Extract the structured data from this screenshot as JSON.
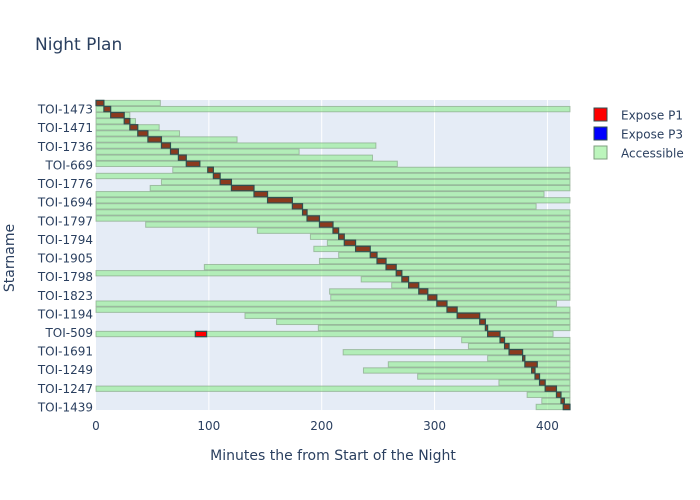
{
  "chart_data": {
    "type": "timeline",
    "title": "Night Plan",
    "xlabel": "Minutes the from Start of the Night",
    "ylabel": "Starname",
    "xlim": [
      0,
      420
    ],
    "x_ticks": [
      0,
      100,
      200,
      300,
      400
    ],
    "y_tick_labels": [
      "TOI-1473",
      "TOI-1471",
      "TOI-1736",
      "TOI-669",
      "TOI-1776",
      "TOI-1694",
      "TOI-1797",
      "TOI-1794",
      "TOI-1905",
      "TOI-1798",
      "TOI-1823",
      "TOI-1194",
      "TOI-509",
      "TOI-1691",
      "TOI-1249",
      "TOI-1247",
      "TOI-1439"
    ],
    "legend": [
      {
        "name": "Expose P1",
        "color": "#ff0000"
      },
      {
        "name": "Expose P3",
        "color": "#0000ff"
      },
      {
        "name": "Accessible",
        "color": "#90ee90"
      }
    ],
    "legend_position": "top-right",
    "rows": [
      {
        "acc": [
          [
            0,
            57
          ]
        ],
        "exp": [
          [
            0,
            7
          ]
        ]
      },
      {
        "acc": [
          [
            0,
            420
          ]
        ],
        "exp": [
          [
            7,
            13
          ]
        ]
      },
      {
        "acc": [
          [
            0,
            30
          ]
        ],
        "exp": [
          [
            13,
            25
          ]
        ]
      },
      {
        "acc": [
          [
            0,
            35
          ]
        ],
        "exp": [
          [
            25,
            30
          ]
        ]
      },
      {
        "acc": [
          [
            0,
            56
          ]
        ],
        "exp": [
          [
            30,
            37
          ]
        ]
      },
      {
        "acc": [
          [
            0,
            74
          ]
        ],
        "exp": [
          [
            37,
            46
          ]
        ]
      },
      {
        "acc": [
          [
            0,
            125
          ]
        ],
        "exp": [
          [
            46,
            58
          ]
        ]
      },
      {
        "acc": [
          [
            0,
            248
          ]
        ],
        "exp": [
          [
            58,
            66
          ]
        ]
      },
      {
        "acc": [
          [
            0,
            180
          ]
        ],
        "exp": [
          [
            66,
            73
          ]
        ]
      },
      {
        "acc": [
          [
            0,
            245
          ]
        ],
        "exp": [
          [
            73,
            80
          ]
        ]
      },
      {
        "acc": [
          [
            0,
            267
          ]
        ],
        "exp": [
          [
            80,
            92
          ]
        ]
      },
      {
        "acc": [
          [
            68,
            420
          ]
        ],
        "exp": [
          [
            99,
            104
          ]
        ]
      },
      {
        "acc": [
          [
            0,
            420
          ]
        ],
        "exp": [
          [
            104,
            110
          ]
        ]
      },
      {
        "acc": [
          [
            58,
            420
          ]
        ],
        "exp": [
          [
            110,
            120
          ]
        ]
      },
      {
        "acc": [
          [
            48,
            420
          ]
        ],
        "exp": [
          [
            120,
            140
          ]
        ]
      },
      {
        "acc": [
          [
            0,
            397
          ]
        ],
        "exp": [
          [
            140,
            152
          ]
        ]
      },
      {
        "acc": [
          [
            0,
            420
          ]
        ],
        "exp": [
          [
            152,
            174
          ]
        ]
      },
      {
        "acc": [
          [
            0,
            390
          ]
        ],
        "exp": [
          [
            174,
            183
          ]
        ]
      },
      {
        "acc": [
          [
            0,
            420
          ]
        ],
        "exp": [
          [
            183,
            187
          ]
        ]
      },
      {
        "acc": [
          [
            0,
            420
          ]
        ],
        "exp": [
          [
            187,
            198
          ]
        ]
      },
      {
        "acc": [
          [
            44,
            420
          ]
        ],
        "exp": [
          [
            198,
            210
          ]
        ]
      },
      {
        "acc": [
          [
            143,
            420
          ]
        ],
        "exp": [
          [
            210,
            215
          ]
        ]
      },
      {
        "acc": [
          [
            190,
            420
          ]
        ],
        "exp": [
          [
            215,
            220
          ]
        ]
      },
      {
        "acc": [
          [
            205,
            420
          ]
        ],
        "exp": [
          [
            220,
            230
          ]
        ]
      },
      {
        "acc": [
          [
            193,
            420
          ]
        ],
        "exp": [
          [
            230,
            243
          ]
        ]
      },
      {
        "acc": [
          [
            215,
            420
          ]
        ],
        "exp": [
          [
            243,
            249
          ]
        ]
      },
      {
        "acc": [
          [
            198,
            420
          ]
        ],
        "exp": [
          [
            249,
            257
          ]
        ]
      },
      {
        "acc": [
          [
            96,
            420
          ]
        ],
        "exp": [
          [
            257,
            266
          ]
        ]
      },
      {
        "acc": [
          [
            0,
            420
          ]
        ],
        "exp": [
          [
            266,
            271
          ]
        ]
      },
      {
        "acc": [
          [
            235,
            420
          ]
        ],
        "exp": [
          [
            271,
            277
          ]
        ]
      },
      {
        "acc": [
          [
            262,
            420
          ]
        ],
        "exp": [
          [
            277,
            286
          ]
        ]
      },
      {
        "acc": [
          [
            207,
            420
          ]
        ],
        "exp": [
          [
            286,
            294
          ]
        ]
      },
      {
        "acc": [
          [
            208,
            420
          ]
        ],
        "exp": [
          [
            294,
            302
          ]
        ]
      },
      {
        "acc": [
          [
            0,
            408
          ]
        ],
        "exp": [
          [
            302,
            311
          ]
        ]
      },
      {
        "acc": [
          [
            0,
            420
          ]
        ],
        "exp": [
          [
            311,
            320
          ]
        ]
      },
      {
        "acc": [
          [
            132,
            420
          ]
        ],
        "exp": [
          [
            320,
            340
          ]
        ]
      },
      {
        "acc": [
          [
            160,
            420
          ]
        ],
        "exp": [
          [
            340,
            345
          ]
        ]
      },
      {
        "acc": [
          [
            197,
            420
          ]
        ],
        "exp": [
          [
            345,
            347
          ]
        ]
      },
      {
        "acc": [
          [
            0,
            405
          ]
        ],
        "exp": [
          [
            347,
            358
          ]
        ],
        "p1": [
          [
            88,
            98
          ]
        ]
      },
      {
        "acc": [
          [
            324,
            420
          ]
        ],
        "exp": [
          [
            358,
            362
          ]
        ]
      },
      {
        "acc": [
          [
            330,
            420
          ]
        ],
        "exp": [
          [
            362,
            366
          ]
        ]
      },
      {
        "acc": [
          [
            219,
            420
          ]
        ],
        "exp": [
          [
            366,
            378
          ]
        ]
      },
      {
        "acc": [
          [
            347,
            420
          ]
        ],
        "exp": [
          [
            378,
            380
          ]
        ]
      },
      {
        "acc": [
          [
            259,
            420
          ]
        ],
        "exp": [
          [
            380,
            391
          ]
        ]
      },
      {
        "acc": [
          [
            237,
            420
          ]
        ],
        "exp": [
          [
            386,
            389
          ]
        ]
      },
      {
        "acc": [
          [
            285,
            420
          ]
        ],
        "exp": [
          [
            389,
            393
          ]
        ]
      },
      {
        "acc": [
          [
            357,
            420
          ]
        ],
        "exp": [
          [
            393,
            398
          ]
        ]
      },
      {
        "acc": [
          [
            0,
            420
          ]
        ],
        "exp": [
          [
            398,
            408
          ]
        ]
      },
      {
        "acc": [
          [
            382,
            420
          ]
        ],
        "exp": [
          [
            408,
            412
          ]
        ]
      },
      {
        "acc": [
          [
            395,
            420
          ]
        ],
        "exp": [
          [
            412,
            415
          ]
        ]
      },
      {
        "acc": [
          [
            390,
            420
          ]
        ],
        "exp": [
          [
            414,
            420
          ]
        ]
      }
    ]
  }
}
